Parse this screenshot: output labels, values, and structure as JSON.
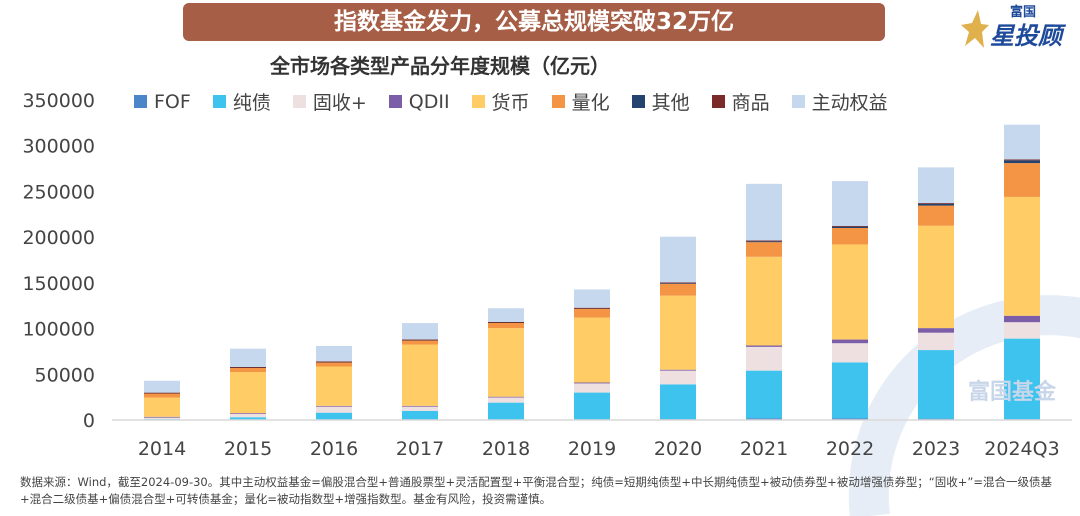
{
  "banner_title": "指数基金发力，公募总规模突破32万亿",
  "logo": {
    "small": "富国",
    "big": "星投顾"
  },
  "watermark": "富国基金",
  "colors": {
    "banner": "#a65f46"
  },
  "chart_data": {
    "type": "bar",
    "stacked": true,
    "title": "全市场各类型产品分年度规模（亿元）",
    "xlabel": "",
    "ylabel": "",
    "ylim": [
      0,
      350000
    ],
    "yticks": [
      "0",
      "50000",
      "100000",
      "150000",
      "200000",
      "250000",
      "300000",
      "350000"
    ],
    "grid": false,
    "legend_position": "top",
    "categories": [
      "2014",
      "2015",
      "2016",
      "2017",
      "2018",
      "2019",
      "2020",
      "2021",
      "2022",
      "2023",
      "2024Q3"
    ],
    "series": [
      {
        "name": "FOF",
        "color": "#4a86c8",
        "values": [
          0,
          0,
          0,
          0,
          0,
          0,
          1000,
          2000,
          2000,
          1500,
          1000
        ]
      },
      {
        "name": "纯债",
        "color": "#3ec3ef",
        "values": [
          1000,
          3000,
          8000,
          10000,
          19000,
          30000,
          38000,
          52000,
          61000,
          75000,
          88000
        ]
      },
      {
        "name": "固收+",
        "color": "#eedfe0",
        "values": [
          2000,
          4000,
          7000,
          5000,
          6000,
          10000,
          15000,
          26000,
          21000,
          19000,
          18000
        ]
      },
      {
        "name": "QDII",
        "color": "#7b5ea7",
        "values": [
          500,
          500,
          500,
          500,
          500,
          1000,
          1000,
          1500,
          4000,
          5000,
          7000
        ]
      },
      {
        "name": "货币",
        "color": "#ffcc66",
        "values": [
          21000,
          45000,
          43000,
          67000,
          75000,
          71000,
          81000,
          97000,
          104000,
          112000,
          130000
        ]
      },
      {
        "name": "量化",
        "color": "#f39545",
        "values": [
          5000,
          5000,
          5000,
          5000,
          6000,
          10000,
          13000,
          16000,
          18000,
          22000,
          37000
        ]
      },
      {
        "name": "其他",
        "color": "#23446e",
        "values": [
          300,
          300,
          300,
          300,
          500,
          500,
          1000,
          1000,
          1500,
          2000,
          3000
        ]
      },
      {
        "name": "商品",
        "color": "#7b2a2a",
        "values": [
          100,
          200,
          200,
          200,
          200,
          300,
          500,
          800,
          800,
          800,
          1000
        ]
      },
      {
        "name": "主动权益",
        "color": "#c6d8ee",
        "values": [
          13000,
          20000,
          17000,
          18000,
          15000,
          20000,
          50000,
          62000,
          49000,
          39000,
          38000
        ]
      }
    ]
  },
  "footnote": "数据来源：Wind，截至2024-09-30。其中主动权益基金=偏股混合型+普通股票型+灵活配置型+平衡混合型；纯债=短期纯债型+中长期纯债型+被动债券型+被动增强债券型；“固收+”=混合一级债基+混合二级债基+偏债混合型+可转债基金；量化=被动指数型+增强指数型。基金有风险，投资需谨慎。"
}
